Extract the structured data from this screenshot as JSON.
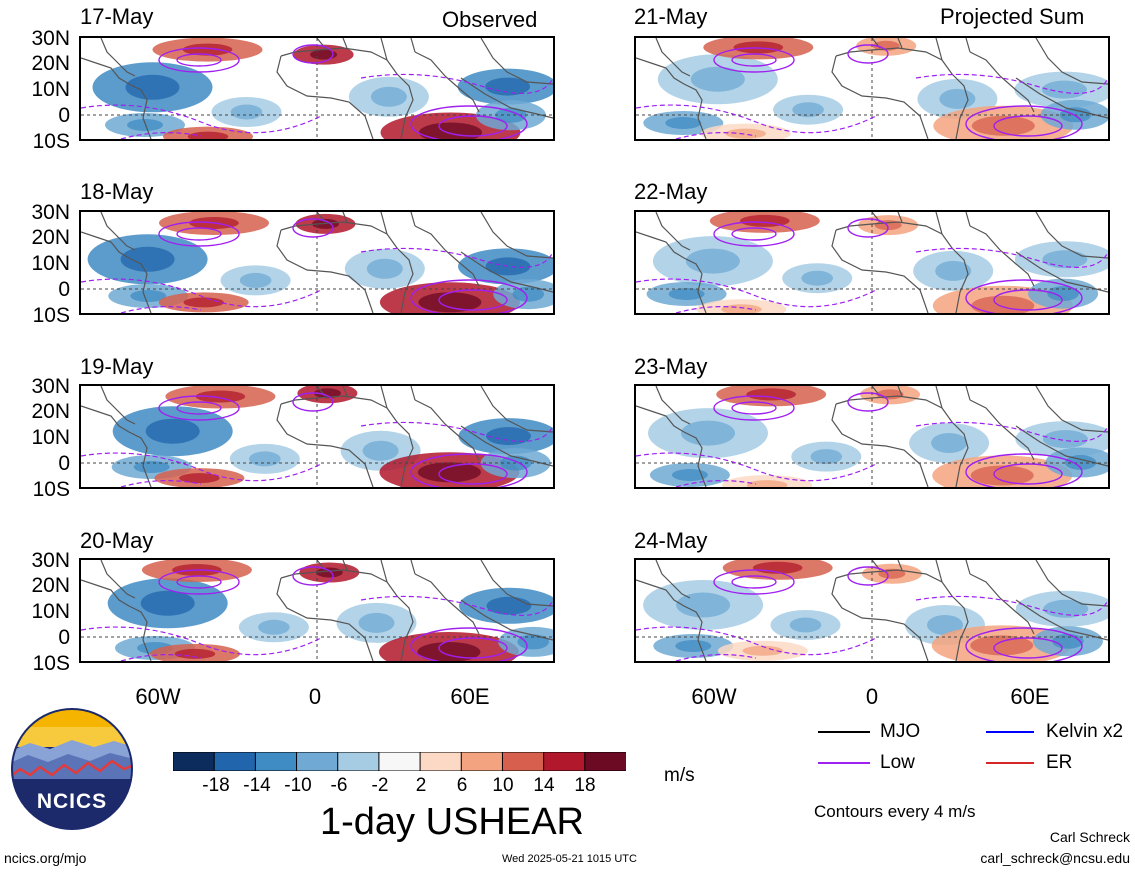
{
  "headers": {
    "observed": "Observed",
    "projected": "Projected Sum"
  },
  "observed_dates": [
    "17-May",
    "18-May",
    "19-May",
    "20-May"
  ],
  "projected_dates": [
    "21-May",
    "22-May",
    "23-May",
    "24-May"
  ],
  "lat_labels": [
    "30N",
    "20N",
    "10N",
    "0",
    "10S"
  ],
  "lon_labels": [
    "60W",
    "0",
    "60E"
  ],
  "colorbar": {
    "ticks": [
      "-18",
      "-14",
      "-10",
      "-6",
      "-2",
      "2",
      "6",
      "10",
      "14",
      "18"
    ],
    "colors": [
      "#0b2c5c",
      "#2166ac",
      "#3f8bc3",
      "#6fa9d4",
      "#a6cce4",
      "#f7f7f7",
      "#fcd9c4",
      "#f3a37f",
      "#d6604d",
      "#b2182b",
      "#6b0a22"
    ],
    "units": "m/s",
    "title": "1-day USHEAR"
  },
  "legend": {
    "items": [
      {
        "label": "MJO",
        "color": "#000000"
      },
      {
        "label": "Kelvin x2",
        "color": "#0000ff"
      },
      {
        "label": "Low",
        "color": "#a020f0"
      },
      {
        "label": "ER",
        "color": "#d62728"
      }
    ],
    "note": "Contours every 4 m/s"
  },
  "footer": {
    "url": "ncics.org/mjo",
    "timestamp": "Wed 2025-05-21 1015 UTC",
    "author": "Carl Schreck",
    "email": "carl_schreck@ncsu.edu"
  },
  "logo": {
    "text": "NCICS"
  }
}
